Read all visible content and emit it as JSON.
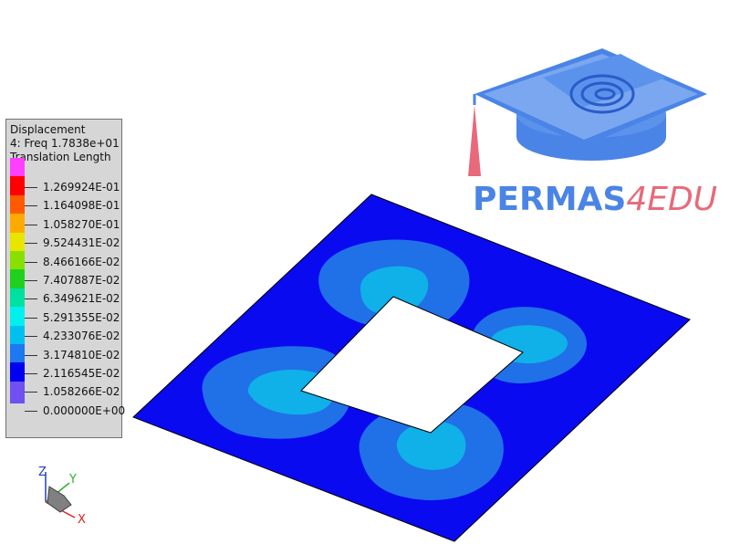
{
  "legend": {
    "title": "Displacement",
    "subtitle": "4: Freq 1.7838e+01",
    "quantity": "Translation Length",
    "levels": [
      {
        "label": "1.269924E-01",
        "color": "#ff40ff"
      },
      {
        "label": "1.164098E-01",
        "color": "#ff0000"
      },
      {
        "label": "1.058270E-01",
        "color": "#ff5a00"
      },
      {
        "label": "9.524431E-02",
        "color": "#ffaa00"
      },
      {
        "label": "8.466166E-02",
        "color": "#e6e600"
      },
      {
        "label": "7.407887E-02",
        "color": "#88e000"
      },
      {
        "label": "6.349621E-02",
        "color": "#20d020"
      },
      {
        "label": "5.291355E-02",
        "color": "#00e0a0"
      },
      {
        "label": "4.233076E-02",
        "color": "#00f0f0"
      },
      {
        "label": "3.174810E-02",
        "color": "#00c0f0"
      },
      {
        "label": "2.116545E-02",
        "color": "#1e78f0"
      },
      {
        "label": "1.058266E-02",
        "color": "#0000f0"
      },
      {
        "label": "0.000000E+00",
        "color": "#7050f0"
      }
    ]
  },
  "logo": {
    "word": "PERMAS",
    "suffix": "4EDU"
  },
  "triad": {
    "z": "Z",
    "y": "Y",
    "x": "X"
  }
}
